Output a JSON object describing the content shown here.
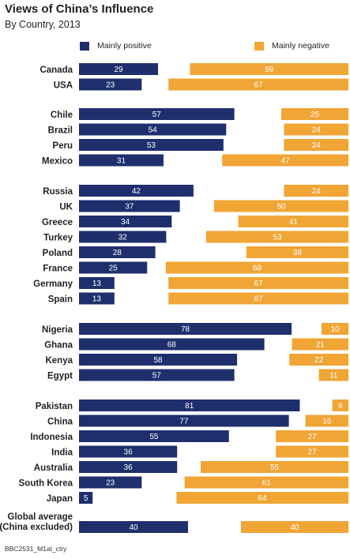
{
  "chart_data": {
    "type": "bar",
    "title": "Views of China’s Influence",
    "subtitle": "By Country, 2013",
    "legend": [
      {
        "label": "Mainly positive",
        "color": "#1f2f6e"
      },
      {
        "label": "Mainly negative",
        "color": "#f0a535"
      }
    ],
    "groups": [
      [
        {
          "country": "Canada",
          "positive": 29,
          "negative": 59
        },
        {
          "country": "USA",
          "positive": 23,
          "negative": 67
        }
      ],
      [
        {
          "country": "Chile",
          "positive": 57,
          "negative": 25
        },
        {
          "country": "Brazil",
          "positive": 54,
          "negative": 24
        },
        {
          "country": "Peru",
          "positive": 53,
          "negative": 24
        },
        {
          "country": "Mexico",
          "positive": 31,
          "negative": 47
        }
      ],
      [
        {
          "country": "Russia",
          "positive": 42,
          "negative": 24
        },
        {
          "country": "UK",
          "positive": 37,
          "negative": 50
        },
        {
          "country": "Greece",
          "positive": 34,
          "negative": 41
        },
        {
          "country": "Turkey",
          "positive": 32,
          "negative": 53
        },
        {
          "country": "Poland",
          "positive": 28,
          "negative": 38
        },
        {
          "country": "France",
          "positive": 25,
          "negative": 68
        },
        {
          "country": "Germany",
          "positive": 13,
          "negative": 67
        },
        {
          "country": "Spain",
          "positive": 13,
          "negative": 67
        }
      ],
      [
        {
          "country": "Nigeria",
          "positive": 78,
          "negative": 10
        },
        {
          "country": "Ghana",
          "positive": 68,
          "negative": 21
        },
        {
          "country": "Kenya",
          "positive": 58,
          "negative": 22
        },
        {
          "country": "Egypt",
          "positive": 57,
          "negative": 11
        }
      ],
      [
        {
          "country": "Pakistan",
          "positive": 81,
          "negative": 6
        },
        {
          "country": "China",
          "positive": 77,
          "negative": 16
        },
        {
          "country": "Indonesia",
          "positive": 55,
          "negative": 27
        },
        {
          "country": "India",
          "positive": 36,
          "negative": 27
        },
        {
          "country": "Australia",
          "positive": 36,
          "negative": 55
        },
        {
          "country": "South Korea",
          "positive": 23,
          "negative": 61
        },
        {
          "country": "Japan",
          "positive": 5,
          "negative": 64
        }
      ],
      [
        {
          "country": "Global average\n(China excluded)",
          "positive": 40,
          "negative": 40
        }
      ]
    ]
  },
  "source": "BBC2531_M1at_ctry"
}
